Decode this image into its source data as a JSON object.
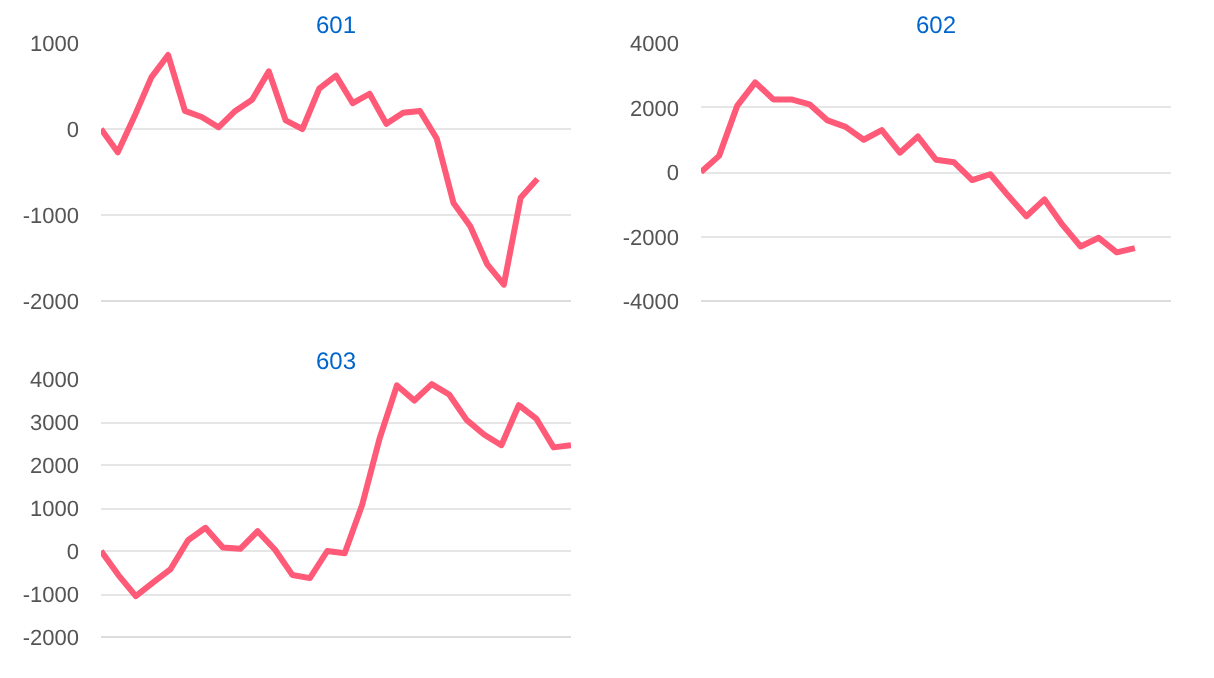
{
  "chart_data": [
    {
      "type": "line",
      "title": "601",
      "categories": [
        null,
        null,
        null,
        null,
        null,
        null,
        null,
        null,
        null,
        null,
        null,
        null,
        null,
        null,
        null,
        null,
        null,
        null,
        null,
        null,
        null,
        null,
        null,
        null,
        null,
        null,
        null,
        null,
        null
      ],
      "series": [
        {
          "color": "#ff5a78",
          "values": [
            0,
            -270,
            150,
            600,
            860,
            210,
            140,
            20,
            210,
            340,
            670,
            100,
            0,
            470,
            620,
            300,
            410,
            60,
            190,
            210,
            -110,
            -860,
            -1130,
            -1570,
            -1810,
            -800,
            -580,
            null,
            null
          ]
        }
      ],
      "ylim": [
        -2000,
        1000
      ],
      "yticks": [
        -2000,
        -1000,
        0,
        1000
      ],
      "grid": "y",
      "tick_labels": "y",
      "marker": "none",
      "line_style": "solid"
    },
    {
      "type": "line",
      "title": "602",
      "categories": [
        null,
        null,
        null,
        null,
        null,
        null,
        null,
        null,
        null,
        null,
        null,
        null,
        null,
        null,
        null,
        null,
        null,
        null,
        null,
        null,
        null,
        null,
        null,
        null,
        null,
        null,
        null
      ],
      "series": [
        {
          "color": "#ff5a78",
          "values": [
            0,
            500,
            2050,
            2780,
            2250,
            2250,
            2100,
            1600,
            1400,
            1000,
            1300,
            600,
            1100,
            380,
            300,
            -250,
            -70,
            -740,
            -1370,
            -850,
            -1640,
            -2310,
            -2040,
            -2490,
            -2360,
            null,
            null
          ]
        }
      ],
      "ylim": [
        -4000,
        4000
      ],
      "yticks": [
        -4000,
        -2000,
        0,
        2000,
        4000
      ],
      "grid": "y",
      "tick_labels": "y",
      "marker": "none",
      "line_style": "solid"
    },
    {
      "type": "line",
      "title": "603",
      "categories": [
        null,
        null,
        null,
        null,
        null,
        null,
        null,
        null,
        null,
        null,
        null,
        null,
        null,
        null,
        null,
        null,
        null,
        null,
        null,
        null,
        null,
        null,
        null,
        null,
        null,
        null,
        null,
        null
      ],
      "series": [
        {
          "color": "#ff5a78",
          "values": [
            0,
            -560,
            -1050,
            -730,
            -420,
            250,
            540,
            80,
            50,
            460,
            30,
            -560,
            -630,
            0,
            -50,
            1070,
            2610,
            3850,
            3500,
            3880,
            3640,
            3050,
            2710,
            2460,
            3390,
            3080,
            2410,
            2460
          ]
        }
      ],
      "ylim": [
        -2000,
        4000
      ],
      "yticks": [
        -2000,
        -1000,
        0,
        1000,
        2000,
        3000,
        4000
      ],
      "grid": "y",
      "tick_labels": "y",
      "marker": "none",
      "line_style": "solid"
    }
  ]
}
